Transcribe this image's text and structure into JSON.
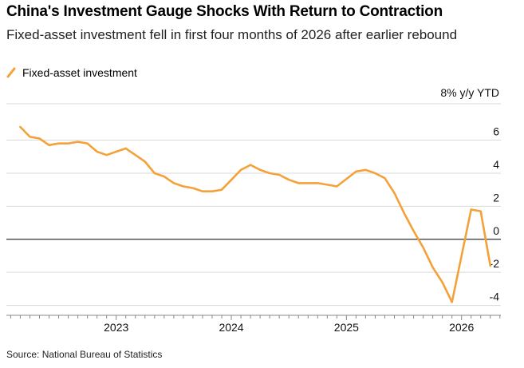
{
  "title": "China's Investment Gauge Shocks With Return to Contraction",
  "subtitle": "Fixed-asset investment fell in first four months of 2026 after earlier rebound",
  "source": "Source: National Bureau of Statistics",
  "colors": {
    "series": "#f4a13a",
    "grid": "#d9d9d9",
    "zero": "#000000"
  },
  "chart_data": {
    "type": "line",
    "ylabel": "8% y/y YTD",
    "ylim": [
      -4.6,
      8.2
    ],
    "yticks": [
      -4,
      -2,
      0,
      2,
      4,
      6
    ],
    "ytick_labels": [
      "-4",
      "-2",
      "0",
      "2",
      "4",
      "6"
    ],
    "xticks": [
      {
        "date": "2023-01",
        "label": "2023"
      },
      {
        "date": "2024-01",
        "label": "2024"
      },
      {
        "date": "2025-01",
        "label": "2025"
      },
      {
        "date": "2026-01",
        "label": "2026"
      }
    ],
    "grid": true,
    "legend": "top-left",
    "series": [
      {
        "name": "Fixed-asset investment",
        "x": [
          "2022-03",
          "2022-04",
          "2022-05",
          "2022-06",
          "2022-07",
          "2022-08",
          "2022-09",
          "2022-10",
          "2022-11",
          "2022-12",
          "2023-02",
          "2023-03",
          "2023-04",
          "2023-05",
          "2023-06",
          "2023-07",
          "2023-08",
          "2023-09",
          "2023-10",
          "2023-11",
          "2023-12",
          "2024-02",
          "2024-03",
          "2024-04",
          "2024-05",
          "2024-06",
          "2024-07",
          "2024-08",
          "2024-09",
          "2024-10",
          "2024-11",
          "2024-12",
          "2025-02",
          "2025-03",
          "2025-04",
          "2025-05",
          "2025-06",
          "2025-07",
          "2025-08",
          "2025-09",
          "2025-10",
          "2025-11",
          "2025-12",
          "2026-02",
          "2026-03",
          "2026-04"
        ],
        "y": [
          6.8,
          6.2,
          6.1,
          5.7,
          5.8,
          5.8,
          5.9,
          5.8,
          5.3,
          5.1,
          5.5,
          5.1,
          4.7,
          4.0,
          3.8,
          3.4,
          3.2,
          3.1,
          2.9,
          2.9,
          3.0,
          4.2,
          4.5,
          4.2,
          4.0,
          3.9,
          3.6,
          3.4,
          3.4,
          3.4,
          3.3,
          3.2,
          4.1,
          4.2,
          4.0,
          3.7,
          2.8,
          1.6,
          0.5,
          -0.5,
          -1.7,
          -2.6,
          -3.8,
          1.8,
          1.7,
          -1.6
        ]
      }
    ]
  }
}
